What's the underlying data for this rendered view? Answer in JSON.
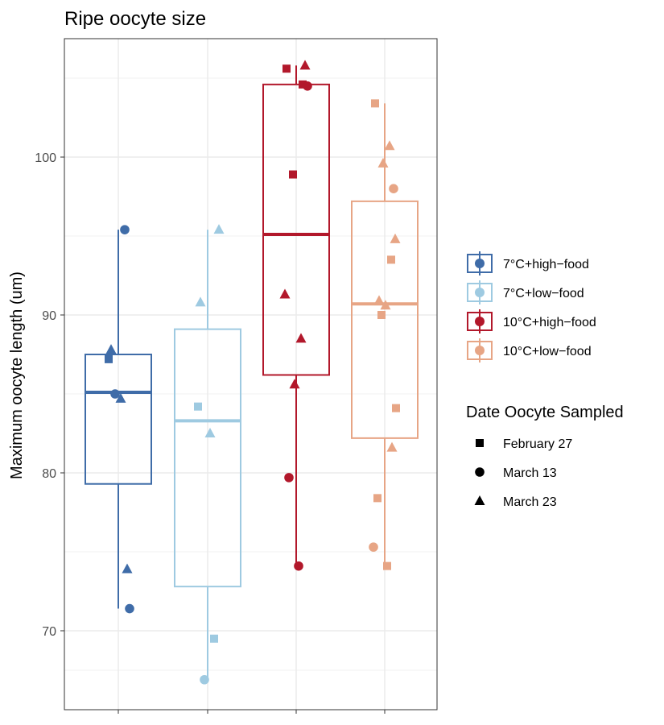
{
  "chart_data": {
    "type": "box",
    "title": "Ripe oocyte size",
    "xlabel": "",
    "ylabel": "Maximum oocyte length (um)",
    "ylim": [
      65,
      107.5
    ],
    "y_ticks": [
      70,
      80,
      90,
      100
    ],
    "grid": true,
    "legend_position": "right",
    "groups": [
      {
        "name": "7°C+high−food",
        "color": "#3f6ca8",
        "box": {
          "lower_whisker": 71.4,
          "q1": 79.3,
          "median": 85.1,
          "q3": 87.5,
          "upper_whisker": 95.4
        },
        "points": [
          {
            "date": "February 27",
            "y": 87.2
          },
          {
            "date": "March 13",
            "y": 95.4
          },
          {
            "date": "March 13",
            "y": 85.0
          },
          {
            "date": "March 13",
            "y": 71.4
          },
          {
            "date": "March 23",
            "y": 87.8
          },
          {
            "date": "March 23",
            "y": 84.7
          },
          {
            "date": "March 23",
            "y": 73.9
          }
        ]
      },
      {
        "name": "7°C+low−food",
        "color": "#9ecae1",
        "box": {
          "lower_whisker": 66.9,
          "q1": 72.8,
          "median": 83.3,
          "q3": 89.1,
          "upper_whisker": 95.4
        },
        "points": [
          {
            "date": "February 27",
            "y": 84.2
          },
          {
            "date": "February 27",
            "y": 69.5
          },
          {
            "date": "March 13",
            "y": 66.9
          },
          {
            "date": "March 23",
            "y": 95.4
          },
          {
            "date": "March 23",
            "y": 90.8
          },
          {
            "date": "March 23",
            "y": 82.5
          }
        ]
      },
      {
        "name": "10°C+high−food",
        "color": "#b2182b",
        "box": {
          "lower_whisker": 74.1,
          "q1": 86.2,
          "median": 95.1,
          "q3": 104.6,
          "upper_whisker": 105.8
        },
        "points": [
          {
            "date": "February 27",
            "y": 105.6
          },
          {
            "date": "February 27",
            "y": 104.6
          },
          {
            "date": "February 27",
            "y": 98.9
          },
          {
            "date": "March 13",
            "y": 104.5
          },
          {
            "date": "March 13",
            "y": 79.7
          },
          {
            "date": "March 13",
            "y": 74.1
          },
          {
            "date": "March 23",
            "y": 105.8
          },
          {
            "date": "March 23",
            "y": 91.3
          },
          {
            "date": "March 23",
            "y": 88.5
          },
          {
            "date": "March 23",
            "y": 85.6
          }
        ]
      },
      {
        "name": "10°C+low−food",
        "color": "#e7a585",
        "box": {
          "lower_whisker": 74.1,
          "q1": 82.2,
          "median": 90.7,
          "q3": 97.2,
          "upper_whisker": 103.4
        },
        "points": [
          {
            "date": "February 27",
            "y": 103.4
          },
          {
            "date": "February 27",
            "y": 93.5
          },
          {
            "date": "February 27",
            "y": 90.0
          },
          {
            "date": "February 27",
            "y": 84.1
          },
          {
            "date": "February 27",
            "y": 78.4
          },
          {
            "date": "February 27",
            "y": 74.1
          },
          {
            "date": "March 13",
            "y": 98.0
          },
          {
            "date": "March 13",
            "y": 75.3
          },
          {
            "date": "March 23",
            "y": 100.7
          },
          {
            "date": "March 23",
            "y": 99.6
          },
          {
            "date": "March 23",
            "y": 94.8
          },
          {
            "date": "March 23",
            "y": 90.9
          },
          {
            "date": "March 23",
            "y": 90.6
          },
          {
            "date": "March 23",
            "y": 81.6
          }
        ]
      }
    ],
    "shape_legend": {
      "title": "Date Oocyte Sampled",
      "items": [
        {
          "label": "February 27",
          "shape": "square"
        },
        {
          "label": "March 13",
          "shape": "circle"
        },
        {
          "label": "March 23",
          "shape": "triangle"
        }
      ]
    },
    "colors": {
      "axis_text": "#4d4d4d",
      "grid": "#ebebeb",
      "panel_border": "#333333"
    }
  }
}
